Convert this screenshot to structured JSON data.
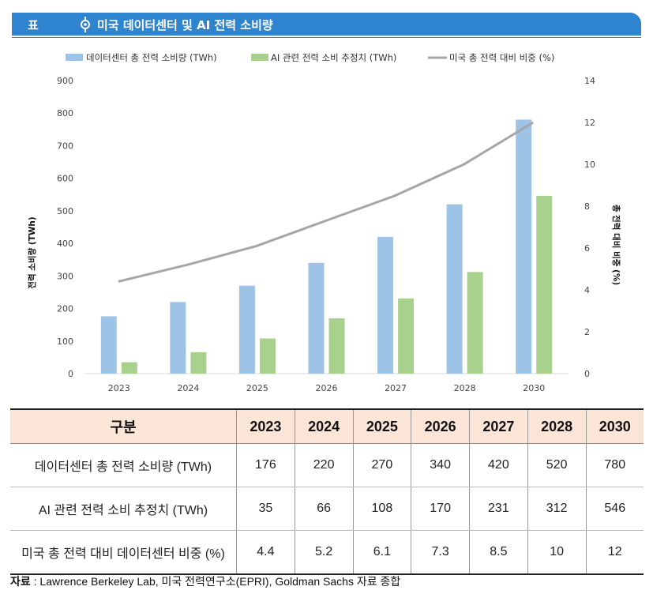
{
  "header": {
    "label": "표",
    "title": "미국 데이터센터 및 AI 전력 소비량",
    "icon": "marker-icon"
  },
  "colors": {
    "header_bg": "#2e84cf",
    "series1": "#9dc3e6",
    "series2": "#a9d18e",
    "line": "#a6a6a6",
    "table_header_bg": "#fbe5d6"
  },
  "chart_data": {
    "type": "bar",
    "categories": [
      "2023",
      "2024",
      "2025",
      "2026",
      "2027",
      "2028",
      "2030"
    ],
    "series": [
      {
        "name": "데이터센터 총 전력 소비량 (TWh)",
        "values": [
          176,
          220,
          270,
          340,
          420,
          520,
          780
        ],
        "axis": "left",
        "kind": "bar"
      },
      {
        "name": "AI 관련 전력 소비 추정치 (TWh)",
        "values": [
          35,
          66,
          108,
          170,
          231,
          312,
          546
        ],
        "axis": "left",
        "kind": "bar"
      },
      {
        "name": "미국 총 전력 대비 비중 (%)",
        "values": [
          4.4,
          5.2,
          6.1,
          7.3,
          8.5,
          10,
          12
        ],
        "axis": "right",
        "kind": "line"
      }
    ],
    "ylabel": "전력 소비량 (TWh)",
    "y2label": "총 전력 대비 비중 (%)",
    "ylim": [
      0,
      900
    ],
    "y2lim": [
      0,
      14
    ],
    "yticks": [
      "0",
      "100",
      "200",
      "300",
      "400",
      "500",
      "600",
      "700",
      "800",
      "900"
    ],
    "y2ticks": [
      "0",
      "2",
      "4",
      "6",
      "8",
      "10",
      "12",
      "14"
    ],
    "legend_position": "top",
    "grid": false
  },
  "table": {
    "header": [
      "구분",
      "2023",
      "2024",
      "2025",
      "2026",
      "2027",
      "2028",
      "2030"
    ],
    "rows": [
      {
        "label": "데이터센터 총 전력 소비량 (TWh)",
        "values": [
          "176",
          "220",
          "270",
          "340",
          "420",
          "520",
          "780"
        ]
      },
      {
        "label": "AI 관련 전력 소비 추정치 (TWh)",
        "values": [
          "35",
          "66",
          "108",
          "170",
          "231",
          "312",
          "546"
        ]
      },
      {
        "label": "미국 총 전력 대비 데이터센터 비중 (%)",
        "values": [
          "4.4",
          "5.2",
          "6.1",
          "7.3",
          "8.5",
          "10",
          "12"
        ]
      }
    ]
  },
  "source": {
    "label": "자료",
    "text": " : Lawrence Berkeley Lab, 미국 전력연구소(EPRI), Goldman Sachs 자료 종합"
  }
}
